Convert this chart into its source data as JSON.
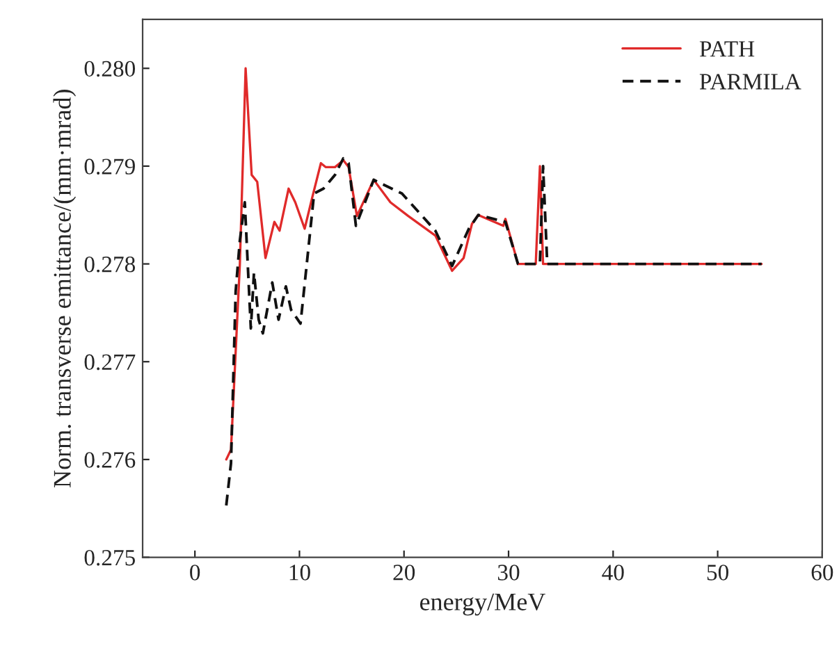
{
  "chart_data": {
    "type": "line",
    "xlabel": "energy/MeV",
    "ylabel": "Norm. transverse emittance/(mm·mrad)",
    "xlim": [
      -5,
      60
    ],
    "xticks": [
      0,
      10,
      20,
      30,
      40,
      50,
      60
    ],
    "ylim": [
      0.275,
      0.2805
    ],
    "yticks": [
      {
        "value": 0.275,
        "label": "0.275"
      },
      {
        "value": 0.276,
        "label": "0.276"
      },
      {
        "value": 0.277,
        "label": "0.277"
      },
      {
        "value": 0.278,
        "label": "0.278"
      },
      {
        "value": 0.279,
        "label": "0.279"
      },
      {
        "value": 0.28,
        "label": "0.280"
      }
    ],
    "grid": false,
    "legend": "top right",
    "marker": "none",
    "series": [
      {
        "name": "PATH",
        "color": "#e02a2a",
        "line_style": "solid",
        "x": [
          3.0,
          3.45,
          4.3,
          4.85,
          5.43,
          5.96,
          6.75,
          7.6,
          8.1,
          8.96,
          9.6,
          10.5,
          11.2,
          12.05,
          12.5,
          13.4,
          14.2,
          14.7,
          15.5,
          17.1,
          18.7,
          20.4,
          23.0,
          24.6,
          25.7,
          26.5,
          27.1,
          29.5,
          29.7,
          30.9,
          32.6,
          33.0,
          33.3,
          54.2
        ],
        "values": [
          0.276,
          0.2761,
          0.278,
          0.28,
          0.27891,
          0.27884,
          0.27806,
          0.27843,
          0.27834,
          0.27877,
          0.27863,
          0.27836,
          0.27867,
          0.27903,
          0.27899,
          0.27899,
          0.27906,
          0.27899,
          0.27849,
          0.27886,
          0.27863,
          0.27849,
          0.27829,
          0.27793,
          0.27806,
          0.27841,
          0.2785,
          0.27839,
          0.27846,
          0.278,
          0.278,
          0.279,
          0.278,
          0.278
        ]
      },
      {
        "name": "PARMILA",
        "color": "#111111",
        "line_style": "dashed",
        "x": [
          3.0,
          3.45,
          3.9,
          4.3,
          4.77,
          5.35,
          5.65,
          6.1,
          6.5,
          7.4,
          8.0,
          8.7,
          9.2,
          10.1,
          10.7,
          11.4,
          12.3,
          13.4,
          14.2,
          14.7,
          15.4,
          17.1,
          19.8,
          23.0,
          24.6,
          26.2,
          27.1,
          29.7,
          30.9,
          33.0,
          33.3,
          33.7,
          54.2
        ],
        "values": [
          0.27553,
          0.27596,
          0.27772,
          0.27824,
          0.27863,
          0.27734,
          0.27791,
          0.27743,
          0.27729,
          0.27781,
          0.27743,
          0.27777,
          0.27753,
          0.27739,
          0.278,
          0.27872,
          0.27877,
          0.27891,
          0.27908,
          0.27903,
          0.27839,
          0.27886,
          0.27872,
          0.27834,
          0.27798,
          0.27836,
          0.2785,
          0.27843,
          0.278,
          0.278,
          0.279,
          0.278,
          0.278
        ]
      }
    ]
  }
}
